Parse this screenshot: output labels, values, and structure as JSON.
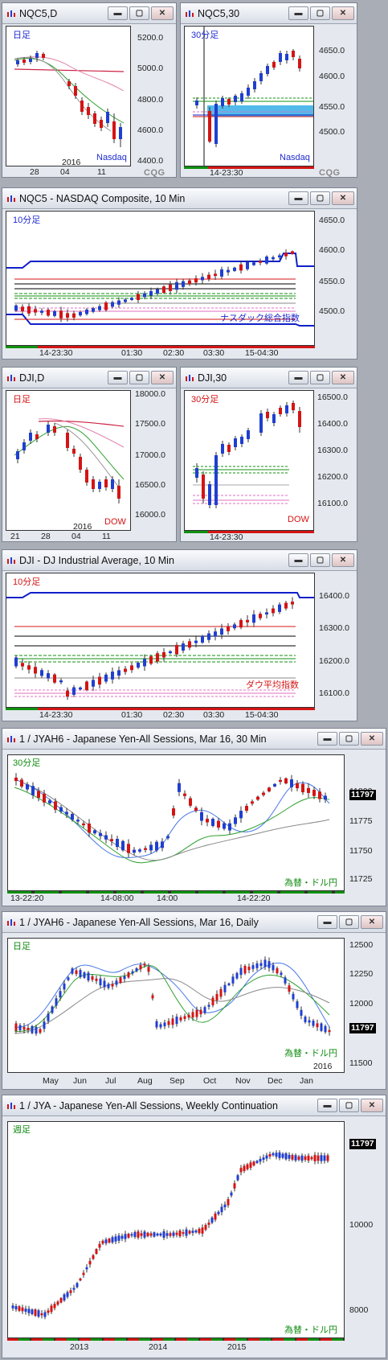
{
  "colors": {
    "bull": "#1f3fd0",
    "bear": "#d41414",
    "blue_line": "#1020c8",
    "red_line": "#d41414",
    "green_line": "#109010",
    "pink_line": "#e070c0",
    "ma_red": "#cc2244",
    "ma_pink": "#e080a8",
    "ma_green": "#30a030",
    "ma_blue": "#4a78e8",
    "highlight": "#33aee8"
  },
  "windows": [
    {
      "title": "NQC5,D",
      "period_label": "日足",
      "instrument_label": "Nasdaq",
      "y_ticks": [
        "5200.0",
        "5000.0",
        "4800.0",
        "4600.0",
        "4400.0"
      ],
      "x_ticks": [
        "28",
        "04",
        "11"
      ],
      "year": "2016",
      "cqg": "CQG"
    },
    {
      "title": "NQC5,30",
      "period_label": "30分足",
      "instrument_label": "Nasdaq",
      "y_ticks": [
        "4650.0",
        "4600.0",
        "4550.0",
        "4500.0"
      ],
      "x_ticks": [
        "14-23:30"
      ],
      "cqg": "CQG"
    },
    {
      "title": "NQC5 - NASDAQ Composite, 10 Min",
      "period_label": "10分足",
      "instrument_label": "ナスダック総合指数",
      "y_ticks": [
        "4650.0",
        "4600.0",
        "4550.0",
        "4500.0"
      ],
      "x_ticks": [
        "14-23:30",
        "01:30",
        "02:30",
        "03:30",
        "15-04:30"
      ]
    },
    {
      "title": "DJI,D",
      "period_label": "日足",
      "instrument_label": "DOW",
      "y_ticks": [
        "18000.0",
        "17500.0",
        "17000.0",
        "16500.0",
        "16000.0"
      ],
      "x_ticks": [
        "21",
        "28",
        "04",
        "11"
      ],
      "year": "2016"
    },
    {
      "title": "DJI,30",
      "period_label": "30分足",
      "instrument_label": "DOW",
      "y_ticks": [
        "16500.0",
        "16400.0",
        "16300.0",
        "16200.0",
        "16100.0"
      ],
      "x_ticks": [
        "14-23:30"
      ]
    },
    {
      "title": "DJI - DJ Industrial Average, 10 Min",
      "period_label": "10分足",
      "instrument_label": "ダウ平均指数",
      "y_ticks": [
        "16400.0",
        "16300.0",
        "16200.0",
        "16100.0"
      ],
      "x_ticks": [
        "14-23:30",
        "01:30",
        "02:30",
        "03:30",
        "15-04:30"
      ]
    },
    {
      "title": "1 / JYAH6 - Japanese Yen-All Sessions, Mar 16, 30 Min",
      "period_label": "30分足",
      "instrument_label": "為替・ドル円",
      "y_ticks": [
        "11800",
        "11775",
        "11750",
        "11725"
      ],
      "price_box": "11797",
      "x_ticks": [
        "13-22:20",
        "14-08:00",
        "14:00",
        "14-22:20"
      ]
    },
    {
      "title": "1 / JYAH6 - Japanese Yen-All Sessions, Mar 16, Daily",
      "period_label": "日足",
      "instrument_label": "為替・ドル円",
      "y_ticks": [
        "12500",
        "12250",
        "12000",
        "11750",
        "11500"
      ],
      "price_box": "11797",
      "x_ticks": [
        "May",
        "Jun",
        "Jul",
        "Aug",
        "Sep",
        "Oct",
        "Nov",
        "Dec",
        "Jan"
      ],
      "year": "2016"
    },
    {
      "title": "1 / JYA - Japanese Yen-All Sessions, Weekly Continuation",
      "period_label": "週足",
      "instrument_label": "為替・ドル円",
      "y_ticks": [
        "12000",
        "10000",
        "8000"
      ],
      "price_box": "11797",
      "x_ticks": [
        "2013",
        "2014",
        "2015"
      ]
    }
  ]
}
